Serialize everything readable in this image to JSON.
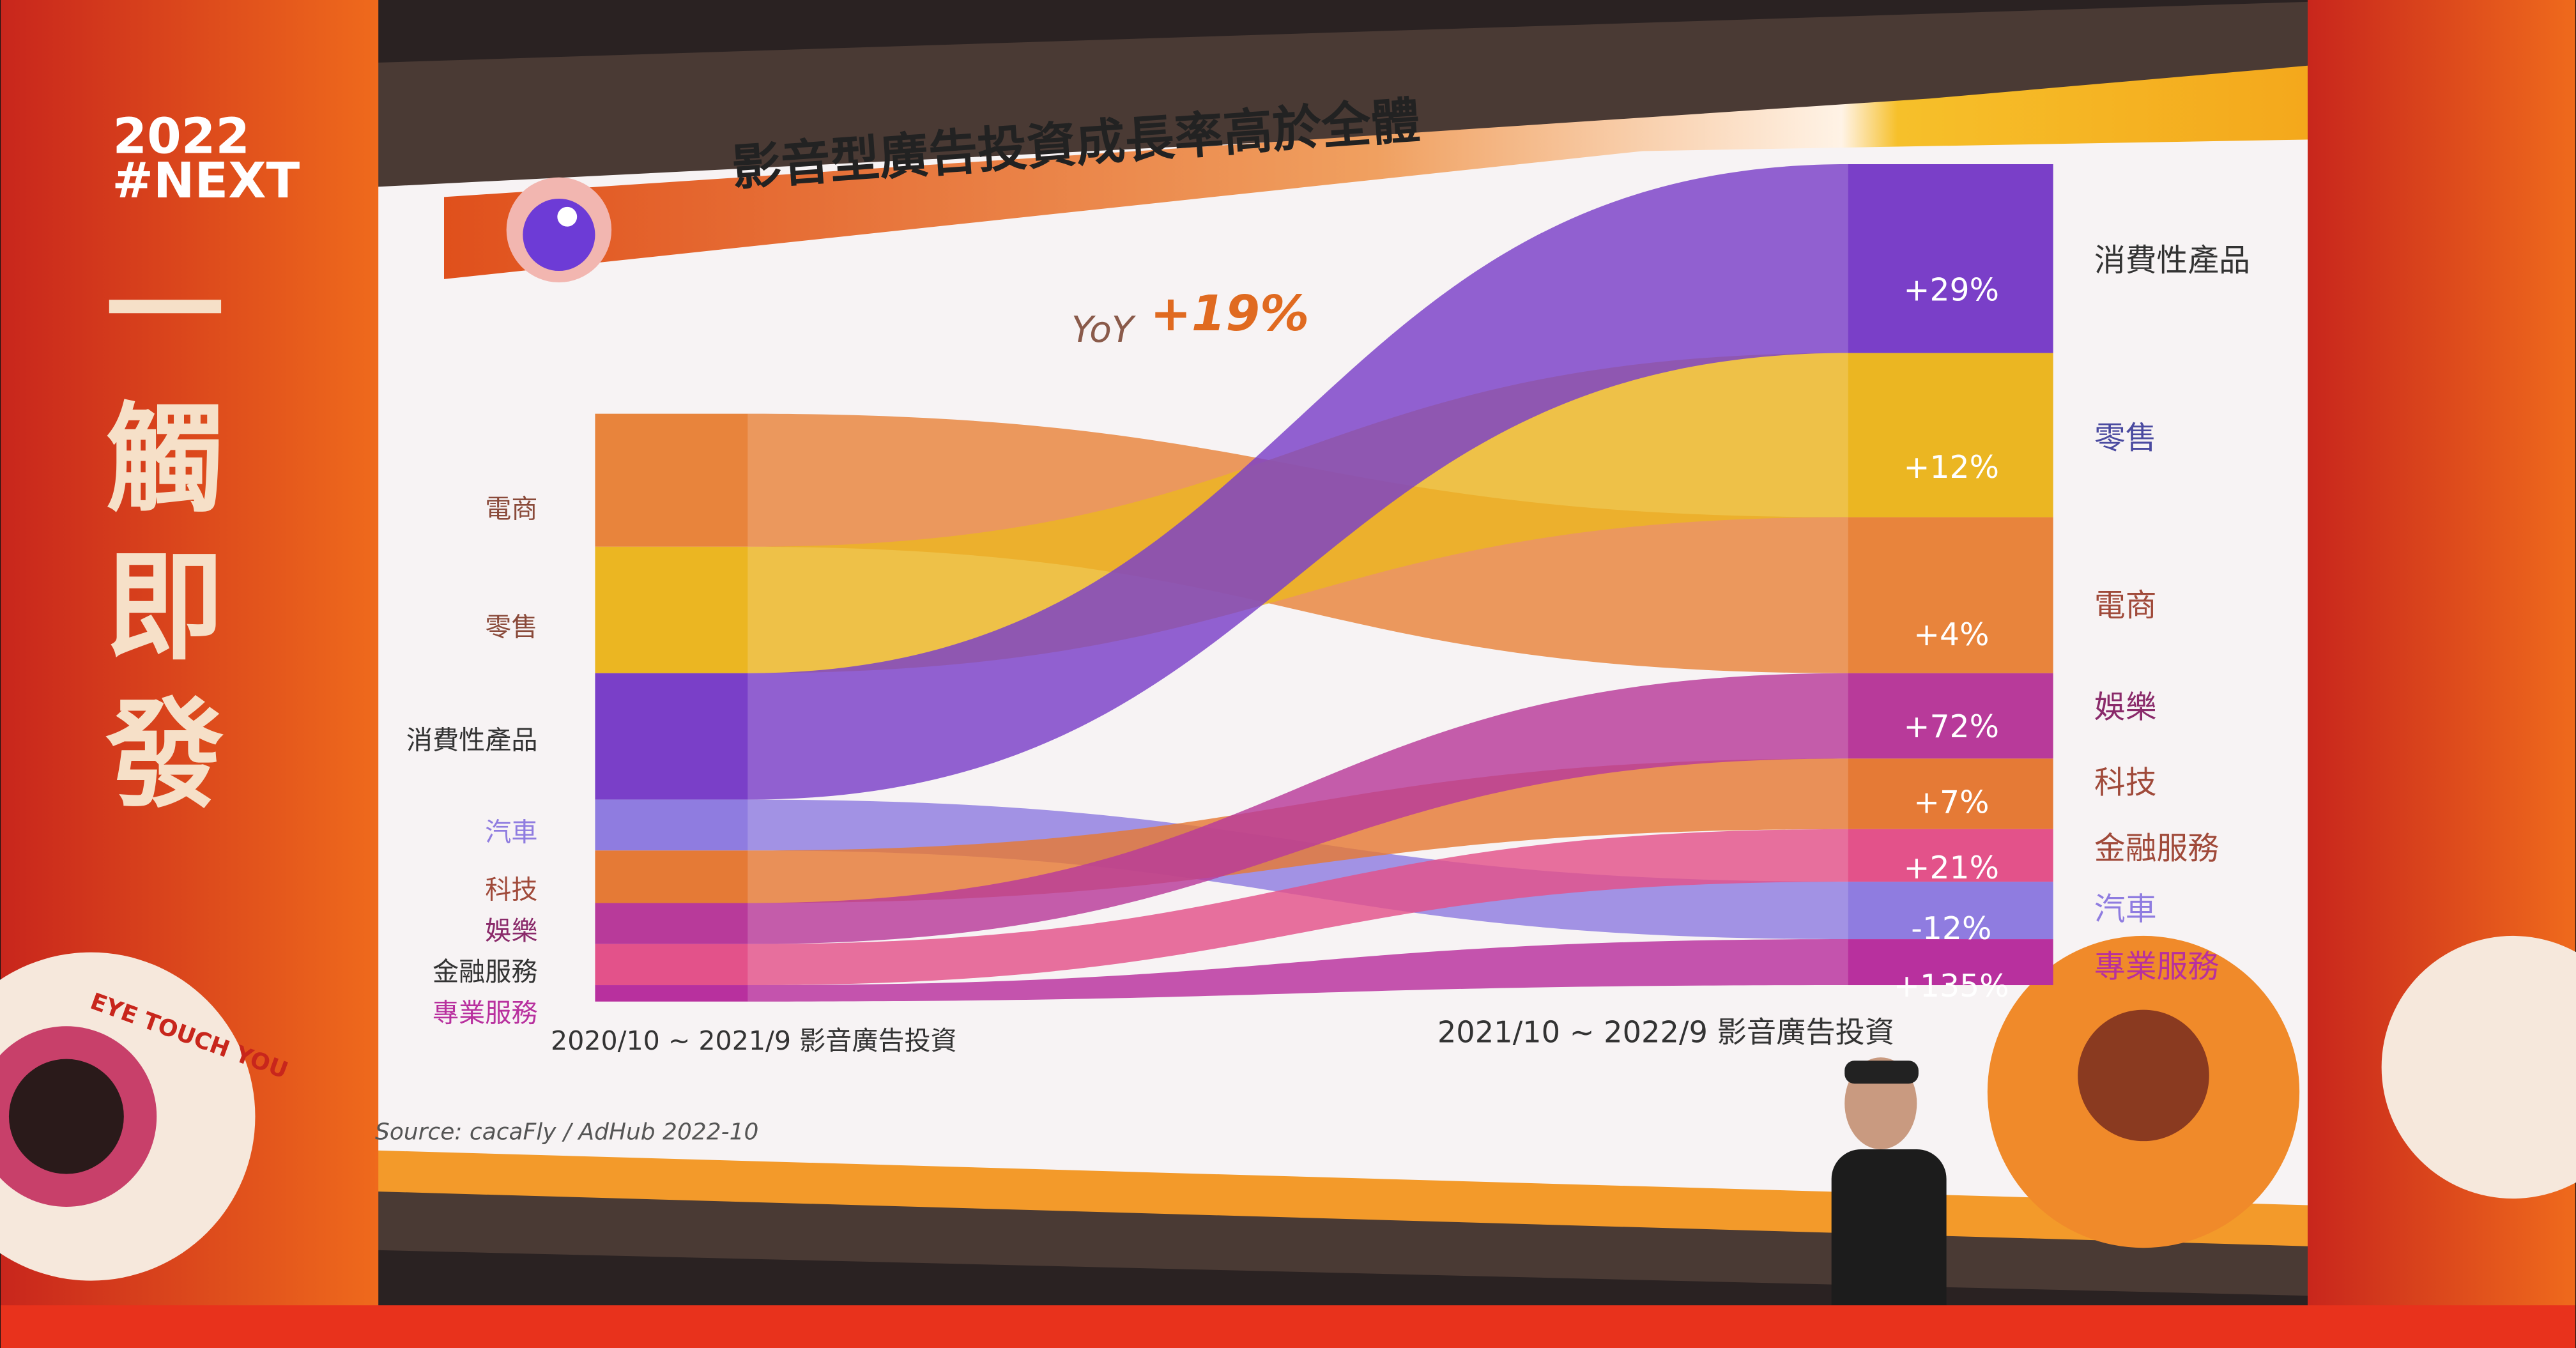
{
  "banner_left": {
    "year": "2022",
    "tag": "#NEXT",
    "slogan": [
      "一",
      "觸",
      "即",
      "發"
    ],
    "ring": "EYE TOUCH YOU"
  },
  "slide": {
    "title": "影音型廣告投資成長率高於全體",
    "yoy": {
      "label": "YoY",
      "value": "+19%"
    },
    "left_labels": [
      "電商",
      "零售",
      "消費性產品",
      "汽車",
      "科技",
      "娛樂",
      "金融服務",
      "專業服務"
    ],
    "right_rows": [
      {
        "label": "消費性產品",
        "growth": "+29%"
      },
      {
        "label": "零售",
        "growth": "+12%"
      },
      {
        "label": "電商",
        "growth": "+4%"
      },
      {
        "label": "娛樂",
        "growth": "+72%"
      },
      {
        "label": "科技",
        "growth": "+7%"
      },
      {
        "label": "金融服務",
        "growth": "+21%"
      },
      {
        "label": "汽車",
        "growth": "-12%"
      },
      {
        "label": "專業服務",
        "growth": "+135%"
      }
    ],
    "left_caption": "2020/10 ~ 2021/9 影音廣告投資",
    "right_caption": "2021/10 ~ 2022/9 影音廣告投資",
    "source": "Source: cacaFly / AdHub 2022-10"
  }
}
